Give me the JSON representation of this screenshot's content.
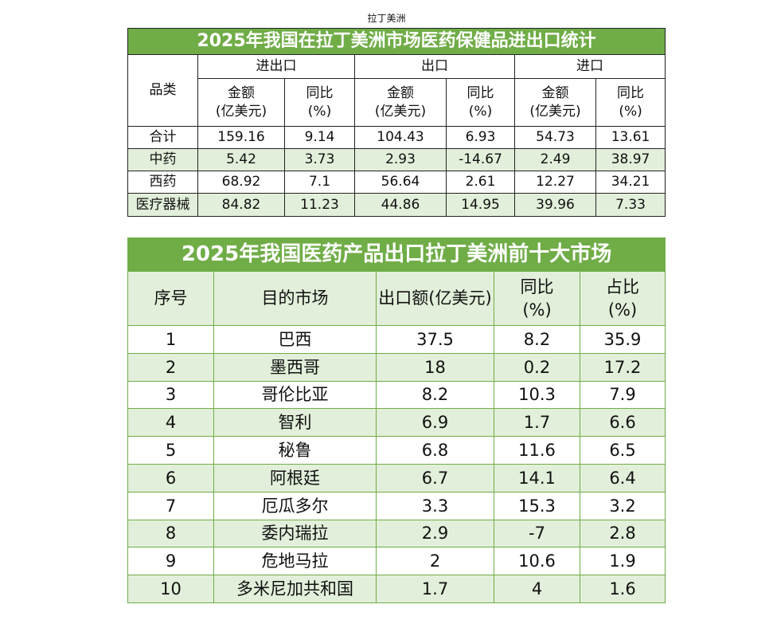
{
  "caption": "拉丁美洲",
  "table1": {
    "title": "2025年我国在拉丁美洲市场医药保健品进出口统计",
    "header": {
      "category": "品类",
      "groups": [
        "进出口",
        "出口",
        "进口"
      ],
      "subheaders": [
        "金额\n(亿美元)",
        "同比\n(%)",
        "金额\n(亿美元)",
        "同比\n(%)",
        "金额\n(亿美元)",
        "同比\n(%)"
      ]
    },
    "rows": [
      [
        "合计",
        159.16,
        9.14,
        104.43,
        6.93,
        54.73,
        13.61
      ],
      [
        "中药",
        5.42,
        3.73,
        2.93,
        -14.67,
        2.49,
        38.97
      ],
      [
        "西药",
        68.92,
        7.1,
        56.64,
        2.61,
        12.27,
        34.21
      ],
      [
        "医疗器械",
        84.82,
        11.23,
        44.86,
        14.95,
        39.96,
        7.33
      ]
    ]
  },
  "table2": {
    "title": "2025年我国医药产品出口拉丁美洲前十大市场",
    "header": [
      "序号",
      "目的市场",
      "出口额(亿美元)",
      "同比\n(%)",
      "占比\n(%)"
    ],
    "rows": [
      [
        1,
        "巴西",
        37.5,
        8.2,
        35.9
      ],
      [
        2,
        "墨西哥",
        18,
        0.2,
        17.2
      ],
      [
        3,
        "哥伦比亚",
        8.2,
        10.3,
        7.9
      ],
      [
        4,
        "智利",
        6.9,
        1.7,
        6.6
      ],
      [
        5,
        "秘鲁",
        6.8,
        11.6,
        6.5
      ],
      [
        6,
        "阿根廷",
        6.7,
        14.1,
        6.4
      ],
      [
        7,
        "厄瓜多尔",
        3.3,
        15.3,
        3.2
      ],
      [
        8,
        "委内瑞拉",
        2.9,
        -7,
        2.8
      ],
      [
        9,
        "危地马拉",
        2,
        10.6,
        1.9
      ],
      [
        10,
        "多米尼加共和国",
        1.7,
        4,
        1.6
      ]
    ]
  }
}
